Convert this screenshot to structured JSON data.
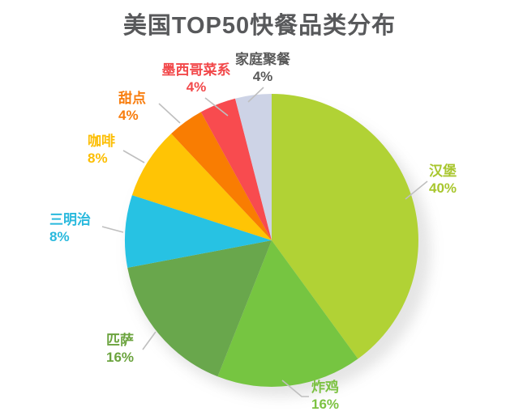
{
  "title": "美国TOP50快餐品类分布",
  "title_color": "#58595B",
  "background": "#FFFFFF",
  "leader_line_color": "#BFBFBF",
  "chart_data": {
    "type": "pie",
    "title": "美国TOP50快餐品类分布",
    "unit": "percent",
    "start_angle_deg": 0,
    "direction": "clockwise",
    "legend_position": "none",
    "segments": [
      {
        "id": "burger",
        "label": "汉堡",
        "value": 40,
        "display": "40%",
        "slice_color": "#B1D235",
        "label_color": "#A8C62D"
      },
      {
        "id": "fried-chicken",
        "label": "炸鸡",
        "value": 16,
        "display": "16%",
        "slice_color": "#76C541",
        "label_color": "#7CC242"
      },
      {
        "id": "pizza",
        "label": "匹萨",
        "value": 16,
        "display": "16%",
        "slice_color": "#69A74C",
        "label_color": "#6BA33E"
      },
      {
        "id": "sandwich",
        "label": "三明治",
        "value": 8,
        "display": "8%",
        "slice_color": "#27C2E3",
        "label_color": "#29B9DD"
      },
      {
        "id": "coffee",
        "label": "咖啡",
        "value": 8,
        "display": "8%",
        "slice_color": "#FFC405",
        "label_color": "#FCBE04"
      },
      {
        "id": "dessert",
        "label": "甜点",
        "value": 4,
        "display": "4%",
        "slice_color": "#F97D02",
        "label_color": "#F87D0E"
      },
      {
        "id": "mexican",
        "label": "墨西哥菜系",
        "value": 4,
        "display": "4%",
        "slice_color": "#F84B4F",
        "label_color": "#F2494B"
      },
      {
        "id": "family-dinner",
        "label": "家庭聚餐",
        "value": 4,
        "display": "4%",
        "slice_color": "#CDD3E6",
        "label_color": "#595959"
      }
    ]
  }
}
